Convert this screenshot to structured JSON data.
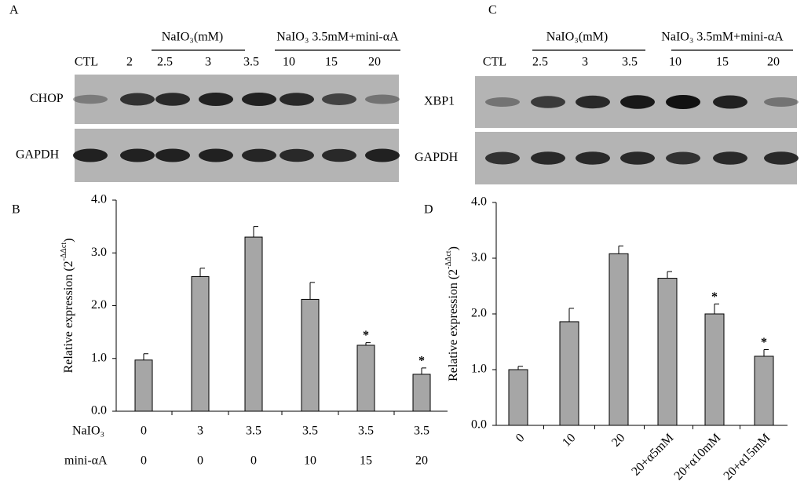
{
  "blots": [
    {
      "label": "A",
      "groups": [
        "NaIO₃(mM)",
        "NaIO₃ 3.5mM+mini-αA"
      ],
      "lanes": [
        "CTL",
        "2",
        "2.5",
        "3",
        "3.5",
        "10",
        "15",
        "20"
      ],
      "rows": [
        "CHOP",
        "GAPDH"
      ]
    },
    {
      "label": "C",
      "groups": [
        "NaIO₃(mM)",
        "NaIO₃ 3.5mM+mini-αA"
      ],
      "lanes": [
        "CTL",
        "2.5",
        "3",
        "3.5",
        "10",
        "15",
        "20"
      ],
      "rows": [
        "XBP1",
        "GAPDH"
      ]
    }
  ],
  "chart_data": [
    {
      "type": "bar",
      "label": "B",
      "ylabel": [
        "Relative expression (2",
        "-ΔΔct",
        ")"
      ],
      "category_rows": [
        {
          "name": "NaIO₃",
          "labels": [
            "0",
            "3",
            "3.5",
            "3.5",
            "3.5",
            "3.5"
          ]
        },
        {
          "name": "mini-αA",
          "labels": [
            "0",
            "0",
            "0",
            "10",
            "15",
            "20"
          ]
        }
      ],
      "values": [
        0.97,
        2.55,
        3.3,
        2.12,
        1.25,
        0.7
      ],
      "errors": [
        0.12,
        0.16,
        0.2,
        0.32,
        0.05,
        0.12
      ],
      "annotations": [
        null,
        null,
        null,
        null,
        "*",
        "*"
      ],
      "color": "#a6a6a6",
      "ylim": [
        0,
        4
      ],
      "yticks": [
        {
          "value": 0,
          "label": "0.0"
        },
        {
          "value": 1,
          "label": "1.0"
        },
        {
          "value": 2,
          "label": "2.0"
        },
        {
          "value": 3,
          "label": "3.0"
        },
        {
          "value": 4,
          "label": "4.0"
        }
      ]
    },
    {
      "type": "bar",
      "label": "D",
      "ylabel": [
        "Relative expression (2",
        "-ΔΔct",
        ")"
      ],
      "categories": [
        "0",
        "10",
        "20",
        "20+α5mM",
        "20+α10mM",
        "20+α15mM"
      ],
      "values": [
        1.0,
        1.86,
        3.08,
        2.64,
        2.0,
        1.24
      ],
      "errors": [
        0.06,
        0.24,
        0.14,
        0.12,
        0.18,
        0.12
      ],
      "annotations": [
        null,
        null,
        null,
        null,
        "*",
        "*"
      ],
      "color": "#a6a6a6",
      "ylim": [
        0,
        4
      ],
      "yticks": [
        {
          "value": 0,
          "label": "0.0"
        },
        {
          "value": 1,
          "label": "1.0"
        },
        {
          "value": 2,
          "label": "2.0"
        },
        {
          "value": 3,
          "label": "3.0"
        },
        {
          "value": 4,
          "label": "4.0"
        }
      ]
    }
  ]
}
